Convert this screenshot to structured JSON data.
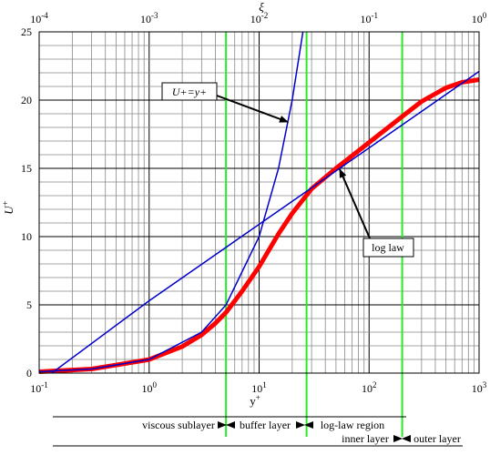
{
  "chart_data": {
    "type": "line",
    "x_axis": {
      "label": "y",
      "label_superscript": "+",
      "scale": "log",
      "range": [
        0.1,
        1000
      ],
      "ticks": [
        {
          "base": "10",
          "exp": "-1"
        },
        {
          "base": "10",
          "exp": "0"
        },
        {
          "base": "10",
          "exp": "1"
        },
        {
          "base": "10",
          "exp": "2"
        },
        {
          "base": "10",
          "exp": "3"
        }
      ]
    },
    "top_axis": {
      "label": "ξ",
      "scale": "log",
      "range": [
        0.0001,
        1
      ],
      "ticks": [
        {
          "base": "10",
          "exp": "-4"
        },
        {
          "base": "10",
          "exp": "-3"
        },
        {
          "base": "10",
          "exp": "-2"
        },
        {
          "base": "10",
          "exp": "-1"
        },
        {
          "base": "10",
          "exp": "0"
        }
      ]
    },
    "y_axis": {
      "label": "U",
      "label_superscript": "+",
      "scale": "linear",
      "range": [
        0,
        25
      ],
      "ticks": [
        "0",
        "5",
        "10",
        "15",
        "20",
        "25"
      ]
    },
    "grid": true,
    "series": [
      {
        "name": "U+=y+",
        "color": "#0000cc",
        "x": [
          0.1,
          0.3,
          1,
          3,
          5,
          10,
          15,
          20,
          25
        ],
        "y": [
          0.1,
          0.3,
          1,
          3,
          5,
          10,
          15,
          20,
          25
        ]
      },
      {
        "name": "log law",
        "color": "#0000cc",
        "x": [
          0.13,
          1,
          10,
          100,
          1000
        ],
        "y": [
          0,
          5.3,
          10.9,
          16.5,
          22.1
        ]
      },
      {
        "color": "#ff0000",
        "x": [
          0.1,
          0.3,
          1,
          2,
          3,
          4,
          5,
          7,
          10,
          15,
          20,
          30,
          50,
          100,
          200,
          300,
          500,
          700,
          1000
        ],
        "y": [
          0.1,
          0.3,
          0.99,
          1.95,
          2.8,
          3.65,
          4.45,
          6.0,
          7.8,
          10.2,
          11.7,
          13.5,
          15.0,
          16.9,
          18.8,
          19.9,
          20.9,
          21.3,
          21.5
        ]
      }
    ],
    "region_boundaries_yplus": [
      5,
      27,
      200
    ],
    "regions": {
      "viscous_sublayer": "viscous sublayer",
      "buffer_layer": "buffer layer",
      "log_law_region": "log-law region",
      "inner_layer": "inner layer",
      "outer_layer": "outer layer"
    },
    "annotations": [
      "U+=y+",
      "log law"
    ]
  }
}
